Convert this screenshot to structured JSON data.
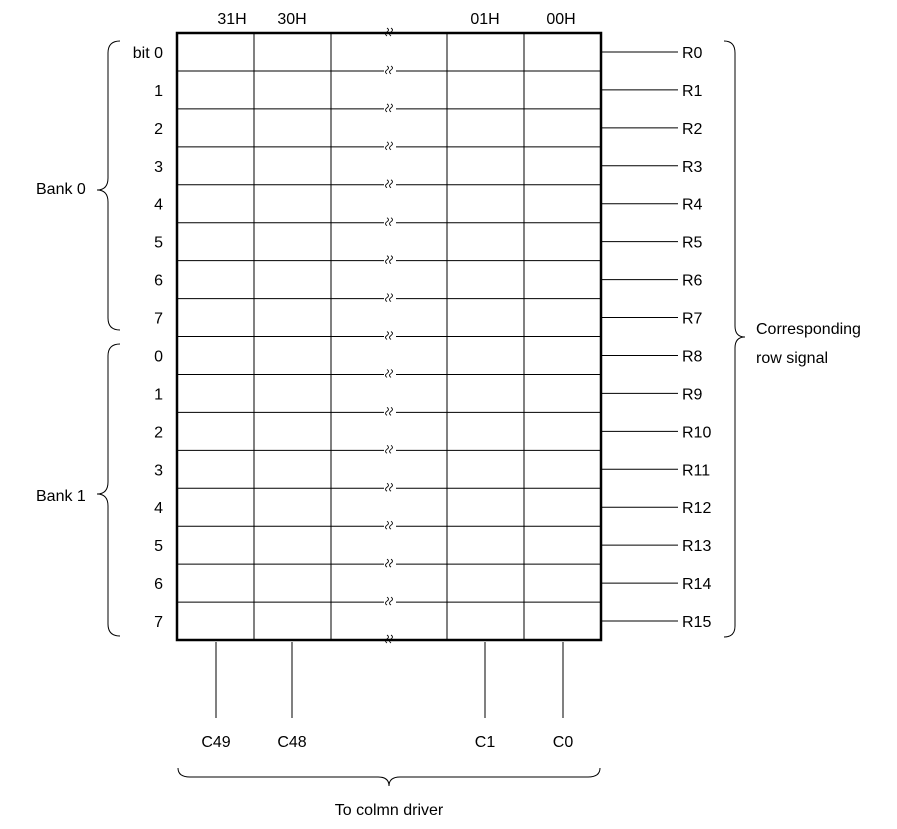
{
  "columns": [
    {
      "address": "31H",
      "driver": "C49"
    },
    {
      "address": "30H",
      "driver": "C48"
    },
    {
      "address": "",
      "driver": ""
    },
    {
      "address": "01H",
      "driver": "C1"
    },
    {
      "address": "00H",
      "driver": "C0"
    }
  ],
  "banks": [
    {
      "label": "Bank 0",
      "bits": [
        "bit 0",
        "1",
        "2",
        "3",
        "4",
        "5",
        "6",
        "7"
      ]
    },
    {
      "label": "Bank 1",
      "bits": [
        "0",
        "1",
        "2",
        "3",
        "4",
        "5",
        "6",
        "7"
      ]
    }
  ],
  "row_signals": [
    "R0",
    "R1",
    "R2",
    "R3",
    "R4",
    "R5",
    "R6",
    "R7",
    "R8",
    "R9",
    "R10",
    "R11",
    "R12",
    "R13",
    "R14",
    "R15"
  ],
  "right_brace_label": [
    "Corresponding",
    "row signal"
  ],
  "bottom_brace_label": "To colmn driver"
}
